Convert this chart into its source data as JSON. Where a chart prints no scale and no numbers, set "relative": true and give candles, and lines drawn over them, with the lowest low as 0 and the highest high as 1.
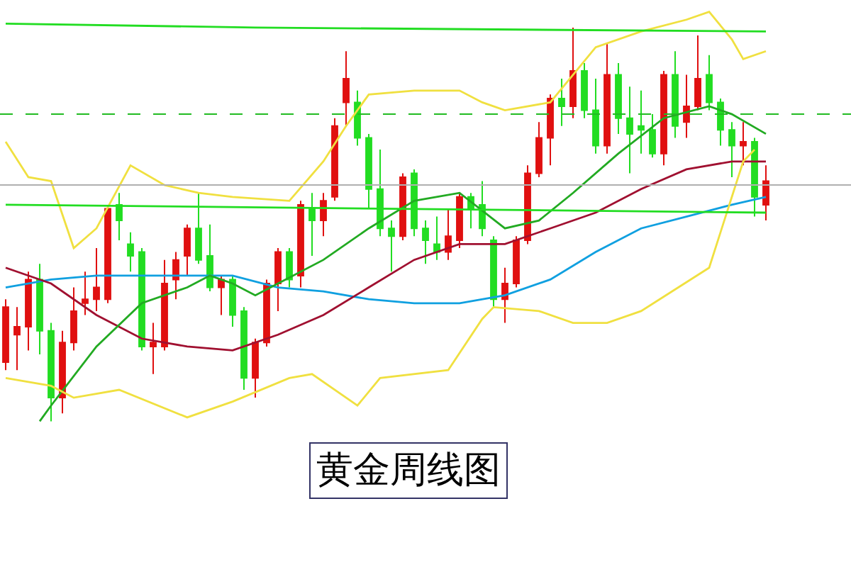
{
  "chart_data": {
    "type": "candlestick",
    "title": "黄金周线图",
    "relative": true,
    "categories": [
      null,
      null,
      null,
      null,
      null,
      null,
      null,
      null,
      null,
      null,
      null,
      null,
      null,
      null,
      null,
      null,
      null,
      null,
      null,
      null,
      null,
      null,
      null,
      null,
      null,
      null,
      null,
      null,
      null,
      null,
      null,
      null,
      null,
      null,
      null,
      null,
      null,
      null,
      null,
      null,
      null,
      null,
      null,
      null,
      null,
      null,
      null,
      null,
      null,
      null,
      null,
      null,
      null,
      null,
      null,
      null,
      null,
      null,
      null,
      null,
      null,
      null,
      null,
      null,
      null,
      null,
      null,
      null
    ],
    "ohlc": [
      [
        0.15,
        0.31,
        0.13,
        0.29
      ],
      [
        0.22,
        0.29,
        0.13,
        0.24
      ],
      [
        0.24,
        0.38,
        0.18,
        0.36
      ],
      [
        0.36,
        0.4,
        0.17,
        0.23
      ],
      [
        0.23,
        0.25,
        0,
        0.06
      ],
      [
        0.06,
        0.23,
        0.02,
        0.2
      ],
      [
        0.2,
        0.34,
        0.18,
        0.28
      ],
      [
        0.3,
        0.38,
        0.27,
        0.31
      ],
      [
        0.31,
        0.44,
        0.28,
        0.34
      ],
      [
        0.31,
        0.55,
        0.3,
        0.54
      ],
      [
        0.55,
        0.58,
        0.46,
        0.51
      ],
      [
        0.45,
        0.48,
        0.38,
        0.42
      ],
      [
        0.43,
        0.44,
        0.18,
        0.19
      ],
      [
        0.19,
        0.25,
        0.12,
        0.2
      ],
      [
        0.19,
        0.41,
        0.18,
        0.35
      ],
      [
        0.36,
        0.43,
        0.31,
        0.41
      ],
      [
        0.42,
        0.5,
        0.37,
        0.49
      ],
      [
        0.49,
        0.58,
        0.4,
        0.41
      ],
      [
        0.42,
        0.5,
        0.33,
        0.34
      ],
      [
        0.34,
        0.37,
        0.27,
        0.36
      ],
      [
        0.36,
        0.37,
        0.24,
        0.27
      ],
      [
        0.28,
        0.29,
        0.08,
        0.11
      ],
      [
        0.11,
        0.21,
        0.06,
        0.2
      ],
      [
        0.2,
        0.36,
        0.19,
        0.35
      ],
      [
        0.35,
        0.44,
        0.28,
        0.43
      ],
      [
        0.43,
        0.44,
        0.34,
        0.36
      ],
      [
        0.37,
        0.56,
        0.34,
        0.55
      ],
      [
        0.54,
        0.58,
        0.42,
        0.51
      ],
      [
        0.51,
        0.58,
        0.47,
        0.56
      ],
      [
        0.57,
        0.77,
        0.56,
        0.75
      ],
      [
        0.81,
        0.94,
        0.75,
        0.87
      ],
      [
        0.81,
        0.84,
        0.7,
        0.72
      ],
      [
        0.72,
        0.73,
        0.54,
        0.59
      ],
      [
        0.59,
        0.69,
        0.47,
        0.49
      ],
      [
        0.49,
        0.51,
        0.38,
        0.47
      ],
      [
        0.47,
        0.63,
        0.46,
        0.62
      ],
      [
        0.63,
        0.64,
        0.47,
        0.49
      ],
      [
        0.49,
        0.51,
        0.4,
        0.46
      ],
      [
        0.45,
        0.52,
        0.41,
        0.43
      ],
      [
        0.43,
        0.54,
        0.41,
        0.47
      ],
      [
        0.46,
        0.58,
        0.44,
        0.57
      ],
      [
        0.57,
        0.58,
        0.49,
        0.54
      ],
      [
        0.55,
        0.61,
        0.47,
        0.49
      ],
      [
        0.46,
        0.47,
        0.29,
        0.31
      ],
      [
        0.31,
        0.39,
        0.25,
        0.35
      ],
      [
        0.35,
        0.47,
        0.34,
        0.46
      ],
      [
        0.46,
        0.65,
        0.45,
        0.63
      ],
      [
        0.63,
        0.76,
        0.62,
        0.72
      ],
      [
        0.72,
        0.83,
        0.65,
        0.82
      ],
      [
        0.82,
        0.87,
        0.75,
        0.8
      ],
      [
        0.8,
        1,
        0.77,
        0.89
      ],
      [
        0.89,
        0.91,
        0.77,
        0.79
      ],
      [
        0.79,
        0.87,
        0.68,
        0.7
      ],
      [
        0.7,
        0.96,
        0.68,
        0.88
      ],
      [
        0.88,
        0.91,
        0.73,
        0.77
      ],
      [
        0.77,
        0.85,
        0.63,
        0.73
      ],
      [
        0.75,
        0.84,
        0.68,
        0.74
      ],
      [
        0.74,
        0.78,
        0.67,
        0.68
      ],
      [
        0.68,
        0.89,
        0.65,
        0.88
      ],
      [
        0.88,
        0.94,
        0.72,
        0.75
      ],
      [
        0.76,
        0.88,
        0.72,
        0.8
      ],
      [
        0.8,
        0.98,
        0.79,
        0.87
      ],
      [
        0.88,
        0.93,
        0.79,
        0.81
      ],
      [
        0.81,
        0.82,
        0.7,
        0.74
      ],
      [
        0.74,
        0.76,
        0.62,
        0.7
      ],
      [
        0.7,
        0.76,
        0.65,
        0.71
      ],
      [
        0.71,
        0.72,
        0.52,
        0.57
      ],
      [
        0.55,
        0.65,
        0.51,
        0.61
      ]
    ],
    "colors": [
      "#e01010",
      "#e01010",
      "#e01010",
      "#22dd22",
      "#22dd22",
      "#e01010",
      "#e01010",
      "#e01010",
      "#e01010",
      "#e01010",
      "#22dd22",
      "#22dd22",
      "#22dd22",
      "#e01010",
      "#e01010",
      "#e01010",
      "#e01010",
      "#22dd22",
      "#22dd22",
      "#e01010",
      "#22dd22",
      "#22dd22",
      "#e01010",
      "#e01010",
      "#e01010",
      "#22dd22",
      "#e01010",
      "#22dd22",
      "#e01010",
      "#e01010",
      "#e01010",
      "#22dd22",
      "#22dd22",
      "#22dd22",
      "#22dd22",
      "#e01010",
      "#22dd22",
      "#22dd22",
      "#22dd22",
      "#e01010",
      "#e01010",
      "#22dd22",
      "#22dd22",
      "#22dd22",
      "#e01010",
      "#e01010",
      "#e01010",
      "#e01010",
      "#e01010",
      "#22dd22",
      "#e01010",
      "#22dd22",
      "#22dd22",
      "#e01010",
      "#22dd22",
      "#22dd22",
      "#22dd22",
      "#22dd22",
      "#e01010",
      "#22dd22",
      "#e01010",
      "#e01010",
      "#22dd22",
      "#22dd22",
      "#22dd22",
      "#e01010",
      "#22dd22",
      "#e01010"
    ],
    "series": [
      {
        "type": "line",
        "color": "#10a0e0",
        "values": [
          0.34,
          null,
          null,
          null,
          0.36,
          null,
          null,
          null,
          0.37,
          null,
          null,
          null,
          0.37,
          null,
          null,
          null,
          0.37,
          null,
          null,
          null,
          0.37,
          null,
          null,
          null,
          0.34,
          null,
          null,
          null,
          0.33,
          null,
          null,
          null,
          0.31,
          null,
          null,
          null,
          0.3,
          null,
          null,
          null,
          0.3,
          null,
          null,
          null,
          0.32,
          null,
          null,
          null,
          0.36,
          null,
          null,
          null,
          0.43,
          null,
          null,
          null,
          0.49,
          null,
          null,
          null,
          0.52,
          null,
          null,
          null,
          0.55,
          null,
          null,
          0.57
        ]
      },
      {
        "type": "line",
        "color": "#a01030",
        "values": [
          0.39,
          null,
          null,
          null,
          0.35,
          null,
          null,
          null,
          0.27,
          null,
          null,
          null,
          0.21,
          null,
          null,
          null,
          0.19,
          null,
          null,
          null,
          0.18,
          null,
          null,
          null,
          0.22,
          null,
          null,
          null,
          0.27,
          null,
          null,
          null,
          0.34,
          null,
          null,
          null,
          0.41,
          null,
          null,
          null,
          0.45,
          null,
          null,
          null,
          0.45,
          null,
          null,
          null,
          0.49,
          null,
          null,
          null,
          0.53,
          null,
          null,
          null,
          0.59,
          null,
          null,
          null,
          0.64,
          null,
          null,
          null,
          0.66,
          null,
          null,
          0.66
        ]
      },
      {
        "type": "line",
        "color": "#22aa22",
        "values": [
          null,
          null,
          null,
          0,
          0.04,
          null,
          null,
          null,
          0.19,
          null,
          null,
          null,
          0.3,
          null,
          null,
          null,
          0.34,
          null,
          0.37,
          null,
          0.35,
          null,
          0.32,
          null,
          0.35,
          null,
          null,
          null,
          0.41,
          null,
          null,
          null,
          0.49,
          null,
          null,
          null,
          0.56,
          null,
          null,
          null,
          0.58,
          null,
          null,
          null,
          0.49,
          null,
          null,
          0.51,
          null,
          null,
          0.58,
          null,
          null,
          null,
          0.68,
          null,
          null,
          null,
          0.77,
          null,
          null,
          null,
          0.8,
          null,
          0.78,
          null,
          null,
          0.73
        ]
      },
      {
        "type": "line",
        "color": "#f0e040",
        "values": [
          0.71,
          null,
          0.62,
          null,
          0.61,
          null,
          0.44,
          null,
          0.49,
          null,
          null,
          0.65,
          null,
          null,
          0.6,
          null,
          null,
          0.58,
          null,
          null,
          0.57,
          null,
          null,
          null,
          null,
          0.56,
          null,
          null,
          0.66,
          null,
          0.75,
          null,
          0.83,
          null,
          null,
          null,
          0.84,
          null,
          null,
          null,
          0.84,
          null,
          0.81,
          null,
          0.79,
          null,
          null,
          null,
          0.81,
          null,
          0.88,
          null,
          0.95,
          null,
          null,
          null,
          0.99,
          null,
          null,
          null,
          1.02,
          null,
          1.04,
          null,
          0.97,
          0.92,
          null,
          0.94
        ]
      },
      {
        "type": "line",
        "color": "#f0e040",
        "values": [
          0.11,
          null,
          null,
          null,
          0.09,
          null,
          0.06,
          null,
          null,
          null,
          0.08,
          null,
          null,
          null,
          null,
          null,
          0.01,
          null,
          null,
          null,
          0.05,
          null,
          null,
          null,
          null,
          0.11,
          null,
          0.12,
          null,
          null,
          null,
          0.04,
          null,
          0.11,
          null,
          null,
          null,
          null,
          null,
          0.13,
          null,
          null,
          0.26,
          0.29,
          null,
          null,
          null,
          0.28,
          null,
          null,
          0.25,
          null,
          null,
          0.25,
          null,
          null,
          0.28,
          null,
          null,
          null,
          null,
          null,
          0.39,
          null,
          0.57,
          0.66,
          0.69,
          null
        ]
      },
      {
        "type": "line",
        "color": "#22dd22",
        "values": [
          1.01,
          null,
          null,
          null,
          null,
          null,
          null,
          null,
          null,
          null,
          null,
          null,
          null,
          null,
          null,
          null,
          null,
          null,
          null,
          null,
          null,
          null,
          1.0,
          null,
          null,
          null,
          null,
          null,
          null,
          null,
          null,
          null,
          null,
          null,
          null,
          null,
          null,
          null,
          null,
          null,
          null,
          null,
          null,
          null,
          null,
          null,
          null,
          null,
          null,
          null,
          null,
          null,
          null,
          null,
          null,
          null,
          null,
          null,
          null,
          null,
          null,
          null,
          null,
          null,
          null,
          null,
          null,
          0.99
        ]
      },
      {
        "type": "line",
        "color": "#22dd22",
        "values": [
          0.55,
          null,
          null,
          null,
          null,
          null,
          null,
          null,
          null,
          null,
          null,
          null,
          null,
          null,
          null,
          null,
          null,
          null,
          null,
          null,
          null,
          null,
          null,
          null,
          null,
          null,
          null,
          null,
          null,
          null,
          null,
          null,
          null,
          null,
          null,
          null,
          null,
          null,
          null,
          null,
          null,
          null,
          null,
          null,
          null,
          null,
          null,
          null,
          null,
          null,
          null,
          null,
          null,
          null,
          null,
          null,
          null,
          null,
          null,
          null,
          null,
          null,
          null,
          null,
          null,
          null,
          null,
          0.53
        ]
      }
    ],
    "ref_lines": [
      {
        "axis": "y",
        "value": 0.78,
        "color": "#22bb22",
        "line_style": "dashed"
      },
      {
        "axis": "y",
        "value": 0.6,
        "color": "#b0b0b0",
        "line_style": "solid"
      }
    ]
  }
}
